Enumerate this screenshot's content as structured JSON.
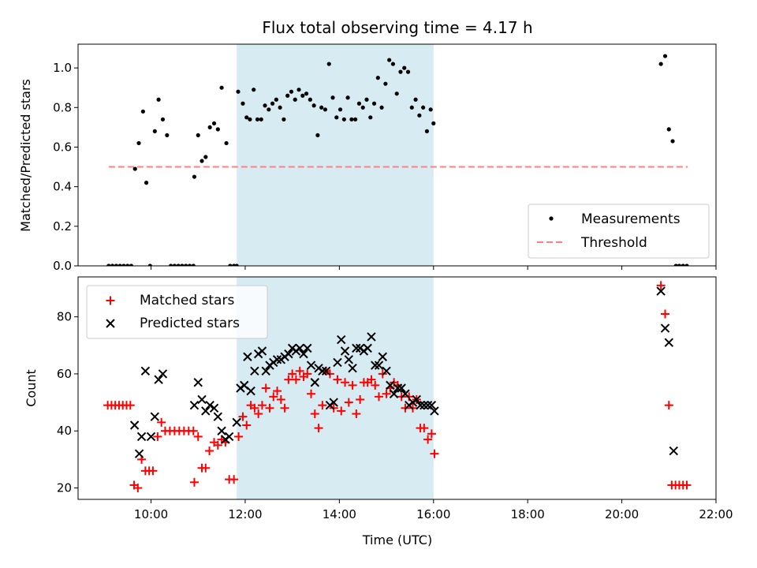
{
  "chart_data": [
    {
      "type": "scatter",
      "title": "Flux total observing time = 4.17 h",
      "xlabel": "",
      "ylabel": "Matched/Predicted stars",
      "xlim": [
        8.45,
        22.0
      ],
      "ylim": [
        0.0,
        1.12
      ],
      "yticks": [
        0.0,
        0.2,
        0.4,
        0.6,
        0.8,
        1.0
      ],
      "ytick_labels": [
        "0.0",
        "0.2",
        "0.4",
        "0.6",
        "0.8",
        "1.0"
      ],
      "xticks": [
        10,
        12,
        14,
        16,
        18,
        20,
        22
      ],
      "show_xtick_labels": false,
      "shaded_region": {
        "x_start": 11.82,
        "x_end": 16.0,
        "color": "#add8e6"
      },
      "threshold": {
        "name": "Threshold",
        "value": 0.5,
        "x_start": 9.1,
        "x_end": 21.4,
        "color": "#ff8080",
        "style": "dashed"
      },
      "legend_position": "lower-right",
      "series": [
        {
          "name": "Measurements",
          "marker": "dot",
          "color": "#000000",
          "x": [
            9.1,
            9.18,
            9.26,
            9.34,
            9.42,
            9.5,
            9.58,
            9.66,
            9.74,
            9.83,
            9.9,
            9.98,
            10.08,
            10.16,
            10.25,
            10.34,
            10.42,
            10.5,
            10.58,
            10.66,
            10.74,
            10.82,
            10.9,
            10.92,
            11.0,
            11.08,
            11.16,
            11.25,
            11.34,
            11.42,
            11.5,
            11.6,
            11.68,
            11.76,
            11.82,
            11.85,
            11.95,
            12.03,
            12.1,
            12.18,
            12.26,
            12.34,
            12.42,
            12.5,
            12.58,
            12.66,
            12.74,
            12.82,
            12.9,
            12.98,
            13.06,
            13.14,
            13.22,
            13.3,
            13.38,
            13.46,
            13.54,
            13.62,
            13.7,
            13.78,
            13.86,
            13.94,
            14.02,
            14.1,
            14.18,
            14.26,
            14.34,
            14.42,
            14.5,
            14.58,
            14.66,
            14.74,
            14.82,
            14.9,
            14.98,
            15.06,
            15.14,
            15.22,
            15.3,
            15.38,
            15.46,
            15.54,
            15.62,
            15.7,
            15.78,
            15.86,
            15.94,
            16.0,
            20.83,
            20.92,
            21.0,
            21.08,
            21.15,
            21.22,
            21.3,
            21.38
          ],
          "y": [
            0.0,
            0.0,
            0.0,
            0.0,
            0.0,
            0.0,
            0.0,
            0.49,
            0.62,
            0.78,
            0.42,
            0.0,
            0.68,
            0.84,
            0.74,
            0.66,
            0.0,
            0.0,
            0.0,
            0.0,
            0.0,
            0.0,
            0.0,
            0.45,
            0.66,
            0.53,
            0.55,
            0.7,
            0.72,
            0.69,
            0.9,
            0.62,
            0.0,
            0.0,
            0.0,
            0.88,
            0.82,
            0.75,
            0.74,
            0.89,
            0.74,
            0.74,
            0.81,
            0.79,
            0.82,
            0.84,
            0.8,
            0.74,
            0.86,
            0.88,
            0.84,
            0.89,
            0.86,
            0.87,
            0.84,
            0.81,
            0.66,
            0.8,
            0.79,
            1.02,
            0.85,
            0.75,
            0.79,
            0.74,
            0.85,
            0.74,
            0.74,
            0.82,
            0.8,
            0.84,
            0.75,
            0.82,
            0.95,
            0.8,
            0.92,
            1.04,
            1.02,
            0.87,
            0.98,
            1.0,
            0.98,
            0.8,
            0.84,
            0.76,
            0.8,
            0.68,
            0.79,
            0.72,
            1.02,
            1.06,
            0.69,
            0.63,
            0.0,
            0.0,
            0.0,
            0.0
          ]
        }
      ]
    },
    {
      "type": "scatter",
      "title": "",
      "xlabel": "Time (UTC)",
      "ylabel": "Count",
      "xlim": [
        8.45,
        22.0
      ],
      "ylim": [
        16,
        94
      ],
      "yticks": [
        20,
        40,
        60,
        80
      ],
      "ytick_labels": [
        "20",
        "40",
        "60",
        "80"
      ],
      "xticks": [
        10,
        12,
        14,
        16,
        18,
        20,
        22
      ],
      "xtick_labels": [
        "10:00",
        "12:00",
        "14:00",
        "16:00",
        "18:00",
        "20:00",
        "22:00"
      ],
      "shaded_region": {
        "x_start": 11.82,
        "x_end": 16.0,
        "color": "#add8e6"
      },
      "legend_position": "upper-left",
      "series": [
        {
          "name": "Matched stars",
          "marker": "plus",
          "color": "#ff0000",
          "x": [
            9.08,
            9.16,
            9.24,
            9.32,
            9.4,
            9.48,
            9.56,
            9.64,
            9.72,
            9.8,
            9.88,
            9.96,
            10.04,
            10.14,
            10.22,
            10.3,
            10.4,
            10.5,
            10.6,
            10.7,
            10.8,
            10.9,
            10.92,
            11.0,
            11.08,
            11.16,
            11.24,
            11.34,
            11.42,
            11.5,
            11.58,
            11.66,
            11.76,
            11.86,
            11.95,
            12.03,
            12.12,
            12.2,
            12.28,
            12.36,
            12.44,
            12.52,
            12.6,
            12.68,
            12.76,
            12.84,
            12.92,
            13.0,
            13.08,
            13.16,
            13.24,
            13.32,
            13.4,
            13.48,
            13.56,
            13.64,
            13.72,
            13.8,
            13.88,
            13.96,
            14.04,
            14.12,
            14.2,
            14.28,
            14.36,
            14.44,
            14.52,
            14.6,
            14.68,
            14.76,
            14.84,
            14.92,
            15.0,
            15.08,
            15.16,
            15.24,
            15.32,
            15.4,
            15.48,
            15.56,
            15.64,
            15.72,
            15.8,
            15.88,
            15.96,
            16.02,
            20.83,
            20.92,
            21.0,
            21.06,
            21.14,
            21.22,
            21.3,
            21.38
          ],
          "y": [
            49,
            49,
            49,
            49,
            49,
            49,
            49,
            21,
            20,
            30,
            26,
            26,
            26,
            38,
            43,
            40,
            40,
            40,
            40,
            40,
            40,
            40,
            22,
            38,
            27,
            27,
            33,
            36,
            35,
            37,
            36,
            23,
            23,
            38,
            45,
            42,
            49,
            48,
            46,
            49,
            55,
            48,
            52,
            54,
            51,
            48,
            58,
            60,
            58,
            61,
            59,
            60,
            53,
            46,
            41,
            49,
            61,
            60,
            48,
            58,
            47,
            57,
            50,
            56,
            46,
            51,
            57,
            57,
            58,
            56,
            52,
            60,
            53,
            55,
            57,
            56,
            52,
            48,
            52,
            48,
            51,
            41,
            41,
            37,
            39,
            32,
            91,
            81,
            49,
            21,
            21,
            21,
            21,
            21
          ]
        },
        {
          "name": "Predicted stars",
          "marker": "x",
          "color": "#000000",
          "x": [
            9.65,
            9.75,
            9.8,
            9.88,
            10.0,
            10.08,
            10.16,
            10.25,
            10.92,
            11.0,
            11.08,
            11.16,
            11.25,
            11.34,
            11.42,
            11.5,
            11.58,
            11.66,
            11.82,
            11.9,
            11.98,
            12.05,
            12.12,
            12.2,
            12.28,
            12.36,
            12.44,
            12.52,
            12.6,
            12.68,
            12.76,
            12.84,
            12.92,
            13.0,
            13.08,
            13.16,
            13.24,
            13.32,
            13.4,
            13.48,
            13.56,
            13.64,
            13.72,
            13.8,
            13.88,
            13.96,
            14.04,
            14.12,
            14.2,
            14.28,
            14.36,
            14.44,
            14.52,
            14.6,
            14.68,
            14.76,
            14.84,
            14.92,
            15.0,
            15.08,
            15.16,
            15.24,
            15.32,
            15.4,
            15.48,
            15.56,
            15.64,
            15.72,
            15.8,
            15.88,
            15.96,
            16.02,
            20.83,
            20.92,
            21.0,
            21.1
          ],
          "y": [
            42,
            32,
            38,
            61,
            38,
            45,
            58,
            60,
            49,
            57,
            51,
            47,
            49,
            48,
            45,
            40,
            37,
            38,
            43,
            55,
            56,
            66,
            54,
            61,
            67,
            68,
            61,
            63,
            64,
            65,
            65,
            66,
            67,
            69,
            68,
            69,
            67,
            69,
            63,
            57,
            62,
            61,
            61,
            49,
            50,
            64,
            72,
            68,
            65,
            62,
            69,
            69,
            68,
            69,
            73,
            63,
            63,
            66,
            61,
            56,
            53,
            55,
            55,
            53,
            49,
            50,
            51,
            49,
            49,
            49,
            49,
            47,
            89,
            76,
            71,
            33
          ]
        }
      ]
    }
  ]
}
